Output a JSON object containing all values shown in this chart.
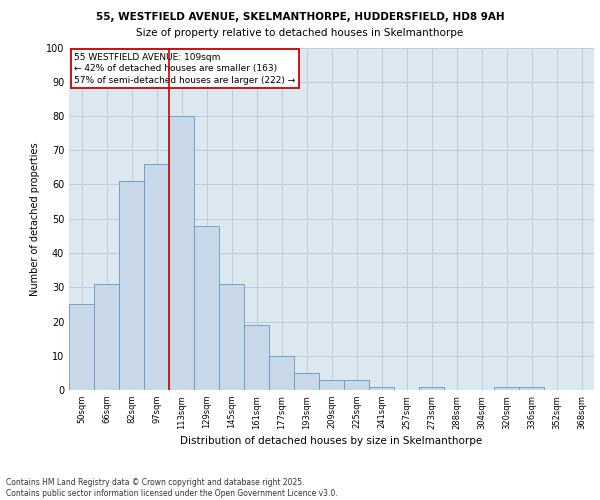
{
  "title1": "55, WESTFIELD AVENUE, SKELMANTHORPE, HUDDERSFIELD, HD8 9AH",
  "title2": "Size of property relative to detached houses in Skelmanthorpe",
  "xlabel": "Distribution of detached houses by size in Skelmanthorpe",
  "ylabel": "Number of detached properties",
  "categories": [
    "50sqm",
    "66sqm",
    "82sqm",
    "97sqm",
    "113sqm",
    "129sqm",
    "145sqm",
    "161sqm",
    "177sqm",
    "193sqm",
    "209sqm",
    "225sqm",
    "241sqm",
    "257sqm",
    "273sqm",
    "288sqm",
    "304sqm",
    "320sqm",
    "336sqm",
    "352sqm",
    "368sqm"
  ],
  "values": [
    25,
    31,
    61,
    66,
    80,
    48,
    31,
    19,
    10,
    5,
    3,
    3,
    1,
    0,
    1,
    0,
    0,
    1,
    1,
    0,
    0
  ],
  "bar_color": "#c8d8e8",
  "bar_edge_color": "#6699bb",
  "vline_x": 3.5,
  "vline_color": "#cc0000",
  "annotation_text": "55 WESTFIELD AVENUE: 109sqm\n← 42% of detached houses are smaller (163)\n57% of semi-detached houses are larger (222) →",
  "annotation_box_color": "#ffffff",
  "annotation_box_edge_color": "#cc0000",
  "ylim": [
    0,
    100
  ],
  "yticks": [
    0,
    10,
    20,
    30,
    40,
    50,
    60,
    70,
    80,
    90,
    100
  ],
  "grid_color": "#c0ccd8",
  "bg_color": "#dce8f0",
  "title1_fontsize": 7.5,
  "title2_fontsize": 7.5,
  "footnote": "Contains HM Land Registry data © Crown copyright and database right 2025.\nContains public sector information licensed under the Open Government Licence v3.0."
}
